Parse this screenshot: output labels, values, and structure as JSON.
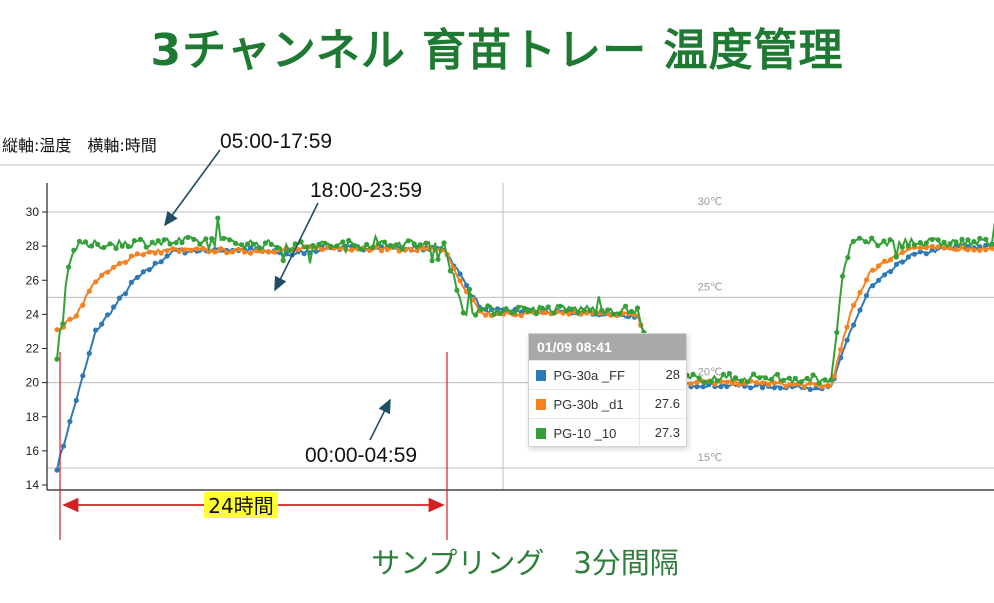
{
  "page": {
    "title": "3チャンネル 育苗トレー 温度管理",
    "axis_note": "縦軸:温度　横軸:時間",
    "footer": "サンプリング　3分間隔"
  },
  "chart_data": {
    "type": "line",
    "ylim": [
      14,
      31
    ],
    "y_ticks": [
      "14",
      "16",
      "18",
      "20",
      "22",
      "24",
      "26",
      "28",
      "30"
    ],
    "secondary_labels": [
      {
        "label": "30℃",
        "value": 30
      },
      {
        "label": "25℃",
        "value": 25
      },
      {
        "label": "20℃",
        "value": 20
      },
      {
        "label": "15℃",
        "value": 15
      }
    ],
    "x_days": [
      0,
      2.5
    ],
    "series": [
      {
        "name": "PG-30a _FF",
        "color": "#2f7ab6",
        "values": [
          [
            0,
            15
          ],
          [
            0.05,
            19
          ],
          [
            0.1,
            23
          ],
          [
            0.2,
            26
          ],
          [
            0.3,
            27.7
          ],
          [
            0.5,
            27.8
          ],
          [
            0.6,
            27.5
          ],
          [
            0.7,
            27.9
          ],
          [
            1.0,
            27.9
          ],
          [
            1.05,
            26
          ],
          [
            1.1,
            24.2
          ],
          [
            1.2,
            24.2
          ],
          [
            1.4,
            24.0
          ],
          [
            1.5,
            23.9
          ],
          [
            1.55,
            21
          ],
          [
            1.6,
            19.9
          ],
          [
            1.8,
            19.8
          ],
          [
            2.0,
            19.7
          ],
          [
            2.05,
            23
          ],
          [
            2.1,
            25.5
          ],
          [
            2.2,
            27.4
          ],
          [
            2.3,
            27.9
          ],
          [
            2.5,
            28
          ]
        ]
      },
      {
        "name": "PG-30b _d1",
        "color": "#f5821f",
        "values": [
          [
            0,
            23
          ],
          [
            0.05,
            24
          ],
          [
            0.1,
            26
          ],
          [
            0.2,
            27.5
          ],
          [
            0.3,
            27.8
          ],
          [
            0.5,
            27.7
          ],
          [
            0.7,
            27.9
          ],
          [
            1.0,
            27.8
          ],
          [
            1.05,
            25.5
          ],
          [
            1.1,
            24.0
          ],
          [
            1.3,
            24.1
          ],
          [
            1.5,
            24.0
          ],
          [
            1.55,
            21
          ],
          [
            1.6,
            20.0
          ],
          [
            1.8,
            20.0
          ],
          [
            2.0,
            19.8
          ],
          [
            2.05,
            24
          ],
          [
            2.1,
            26.5
          ],
          [
            2.2,
            27.9
          ],
          [
            2.5,
            27.8
          ]
        ]
      },
      {
        "name": "PG-10 _10",
        "color": "#34a038",
        "values": [
          [
            0,
            21.5
          ],
          [
            0.03,
            27
          ],
          [
            0.05,
            28
          ],
          [
            0.2,
            28.2
          ],
          [
            0.4,
            28.3
          ],
          [
            0.6,
            28
          ],
          [
            0.8,
            28.1
          ],
          [
            1.0,
            28.1
          ],
          [
            1.05,
            24.2
          ],
          [
            1.2,
            24.3
          ],
          [
            1.4,
            24.3
          ],
          [
            1.5,
            24.2
          ],
          [
            1.55,
            20.2
          ],
          [
            1.8,
            20.3
          ],
          [
            2.0,
            20.2
          ],
          [
            2.03,
            26
          ],
          [
            2.05,
            28.2
          ],
          [
            2.2,
            28.2
          ],
          [
            2.5,
            28.2
          ]
        ]
      }
    ],
    "annotations": {
      "a1": "05:00-17:59",
      "a2": "18:00-23:59",
      "a3": "00:00-04:59",
      "span": "24時間"
    },
    "tooltip": {
      "time": "01/09 08:41",
      "rows": [
        {
          "name": "PG-30a _FF",
          "value": "28",
          "color": "#2f7ab6"
        },
        {
          "name": "PG-30b _d1",
          "value": "27.6",
          "color": "#f5821f"
        },
        {
          "name": "PG-10 _10",
          "value": "27.3",
          "color": "#34a038"
        }
      ]
    }
  }
}
